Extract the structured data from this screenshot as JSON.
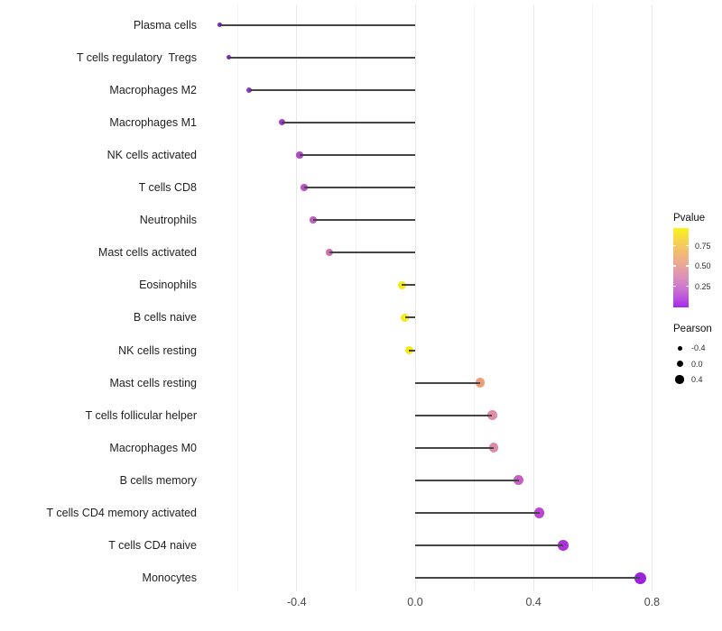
{
  "chart_data": {
    "type": "lollipop",
    "orientation": "horizontal",
    "title": "",
    "xlabel": "",
    "ylabel": "",
    "categories": [
      "Plasma cells",
      "T cells regulatory  Tregs",
      "Macrophages M2",
      "Macrophages M1",
      "NK cells activated",
      "T cells CD8",
      "Neutrophils",
      "Mast cells activated",
      "Eosinophils",
      "B cells naive",
      "NK cells resting",
      "Mast cells resting",
      "T cells follicular helper",
      "Macrophages M0",
      "B cells memory",
      "T cells CD4 memory activated",
      "T cells CD4 naive",
      "Monocytes"
    ],
    "values": [
      -0.66,
      -0.63,
      -0.56,
      -0.45,
      -0.39,
      -0.375,
      -0.345,
      -0.29,
      -0.045,
      -0.035,
      -0.02,
      0.22,
      0.26,
      0.265,
      0.35,
      0.42,
      0.5,
      0.76
    ],
    "point_colors": [
      "#7d20c4",
      "#8a2aca",
      "#9634ce",
      "#a73ec9",
      "#b14bc8",
      "#ba53c5",
      "#c35ebf",
      "#ce6fae",
      "#f6ea17",
      "#f6ea17",
      "#f6ea17",
      "#ec9d79",
      "#e08ca6",
      "#de8aa4",
      "#c65fc0",
      "#bc45d2",
      "#ac31dc",
      "#9c22de"
    ],
    "xlim": [
      -0.732,
      0.832
    ],
    "x_major_ticks": [
      -0.4,
      0.0,
      0.4,
      0.8
    ],
    "x_major_tick_labels": [
      "-0.4",
      "0.0",
      "0.4",
      "0.8"
    ],
    "x_minor_ticks": [
      -0.6,
      -0.2,
      0.2,
      0.6
    ],
    "baseline_x": 0.0,
    "grid": "vertical-only",
    "stem_color": "#454545",
    "legend_position": "right"
  },
  "legend": {
    "pvalue": {
      "title": "Pvalue",
      "ticks": [
        {
          "label": "0.75",
          "fraction_from_bottom": 0.778
        },
        {
          "label": "0.50",
          "fraction_from_bottom": 0.522
        },
        {
          "label": "0.25",
          "fraction_from_bottom": 0.267
        }
      ],
      "gradient_bottom_to_top": [
        {
          "frac": 0.0,
          "color": "#a428ea"
        },
        {
          "frac": 0.12,
          "color": "#bc55dc"
        },
        {
          "frac": 0.25,
          "color": "#ce77ce"
        },
        {
          "frac": 0.38,
          "color": "#dd90ba"
        },
        {
          "frac": 0.5,
          "color": "#e8a19e"
        },
        {
          "frac": 0.62,
          "color": "#efb184"
        },
        {
          "frac": 0.75,
          "color": "#f3c465"
        },
        {
          "frac": 0.88,
          "color": "#f8dc41"
        },
        {
          "frac": 1.0,
          "color": "#faf21d"
        }
      ]
    },
    "pearson": {
      "title": "Pearson",
      "items": [
        {
          "label": "-0.4",
          "diameter": 5
        },
        {
          "label": "0.0",
          "diameter": 7
        },
        {
          "label": "0.4",
          "diameter": 9.2
        }
      ]
    }
  }
}
